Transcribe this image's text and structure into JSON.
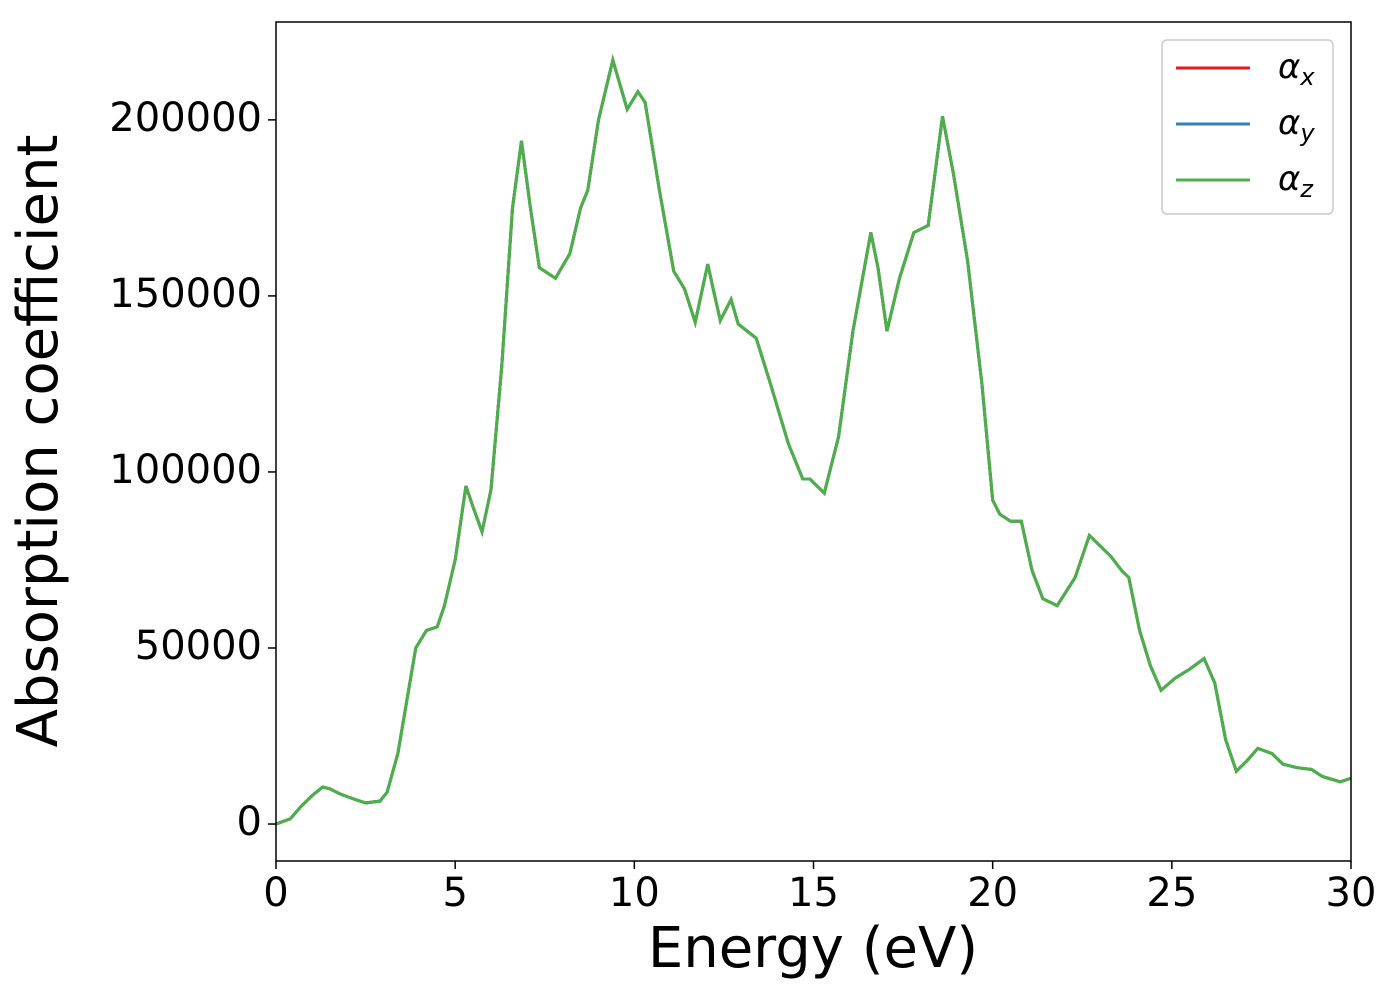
{
  "chart_data": {
    "type": "line",
    "xlabel": "Energy (eV)",
    "ylabel": "Absorption coefficient",
    "x": [
      0,
      0.4,
      0.7,
      1.0,
      1.3,
      1.5,
      1.8,
      2.2,
      2.5,
      2.9,
      3.1,
      3.4,
      3.7,
      3.9,
      4.2,
      4.5,
      4.7,
      5.0,
      5.3,
      5.5,
      5.75,
      6.0,
      6.3,
      6.6,
      6.85,
      7.1,
      7.35,
      7.8,
      8.2,
      8.5,
      8.7,
      9.0,
      9.4,
      9.6,
      9.8,
      10.1,
      10.3,
      10.7,
      11.1,
      11.4,
      11.7,
      11.9,
      12.05,
      12.2,
      12.4,
      12.7,
      12.9,
      13.4,
      13.8,
      14.3,
      14.7,
      14.9,
      15.3,
      15.7,
      16.1,
      16.6,
      16.8,
      17.05,
      17.4,
      17.8,
      18.2,
      18.6,
      18.9,
      19.3,
      19.7,
      20.0,
      20.2,
      20.5,
      20.8,
      21.1,
      21.4,
      21.8,
      22.3,
      22.7,
      23.0,
      23.3,
      23.6,
      23.8,
      24.1,
      24.4,
      24.7,
      25.1,
      25.5,
      25.9,
      26.2,
      26.5,
      26.8,
      27.1,
      27.4,
      27.8,
      28.1,
      28.5,
      28.9,
      29.2,
      29.7,
      30.0
    ],
    "series": [
      {
        "name": "αx",
        "color": "#e41a1c",
        "values": [
          0,
          1500,
          5000,
          8000,
          10500,
          10000,
          8500,
          7000,
          6000,
          6500,
          9000,
          20000,
          38000,
          50000,
          55000,
          56000,
          62000,
          75000,
          96000,
          90000,
          83000,
          95000,
          130000,
          175000,
          194000,
          175000,
          158000,
          155000,
          162000,
          175000,
          180000,
          200000,
          217000,
          210000,
          203000,
          208000,
          205000,
          180000,
          157000,
          152000,
          142500,
          152000,
          159000,
          152000,
          143000,
          149000,
          142000,
          138000,
          125000,
          108000,
          98000,
          98000,
          94000,
          110000,
          140000,
          168000,
          158000,
          140000,
          155000,
          168000,
          170000,
          201000,
          185000,
          160000,
          125000,
          92000,
          88000,
          86000,
          86000,
          72000,
          64000,
          62000,
          70000,
          82000,
          79000,
          76000,
          72000,
          70000,
          55000,
          45000,
          38000,
          41500,
          44000,
          47000,
          40000,
          24000,
          15000,
          18000,
          21500,
          20000,
          17000,
          16000,
          15500,
          13500,
          12000,
          13000
        ]
      },
      {
        "name": "αy",
        "color": "#377eb8",
        "values": [
          0,
          1500,
          5000,
          8000,
          10500,
          10000,
          8500,
          7000,
          6000,
          6500,
          9000,
          20000,
          38000,
          50000,
          55000,
          56000,
          62000,
          75000,
          96000,
          90000,
          83000,
          95000,
          130000,
          175000,
          194000,
          175000,
          158000,
          155000,
          162000,
          175000,
          180000,
          200000,
          217000,
          210000,
          203000,
          208000,
          205000,
          180000,
          157000,
          152000,
          142500,
          152000,
          159000,
          152000,
          143000,
          149000,
          142000,
          138000,
          125000,
          108000,
          98000,
          98000,
          94000,
          110000,
          140000,
          168000,
          158000,
          140000,
          155000,
          168000,
          170000,
          201000,
          185000,
          160000,
          125000,
          92000,
          88000,
          86000,
          86000,
          72000,
          64000,
          62000,
          70000,
          82000,
          79000,
          76000,
          72000,
          70000,
          55000,
          45000,
          38000,
          41500,
          44000,
          47000,
          40000,
          24000,
          15000,
          18000,
          21500,
          20000,
          17000,
          16000,
          15500,
          13500,
          12000,
          13000
        ]
      },
      {
        "name": "αz",
        "color": "#4daf4a",
        "values": [
          0,
          1500,
          5000,
          8000,
          10500,
          10000,
          8500,
          7000,
          6000,
          6500,
          9000,
          20000,
          38000,
          50000,
          55000,
          56000,
          62000,
          75000,
          96000,
          90000,
          83000,
          95000,
          130000,
          175000,
          194000,
          175000,
          158000,
          155000,
          162000,
          175000,
          180000,
          200000,
          217000,
          210000,
          203000,
          208000,
          205000,
          180000,
          157000,
          152000,
          142500,
          152000,
          159000,
          152000,
          143000,
          149000,
          142000,
          138000,
          125000,
          108000,
          98000,
          98000,
          94000,
          110000,
          140000,
          168000,
          158000,
          140000,
          155000,
          168000,
          170000,
          201000,
          185000,
          160000,
          125000,
          92000,
          88000,
          86000,
          86000,
          72000,
          64000,
          62000,
          70000,
          82000,
          79000,
          76000,
          72000,
          70000,
          55000,
          45000,
          38000,
          41500,
          44000,
          47000,
          40000,
          24000,
          15000,
          18000,
          21500,
          20000,
          17000,
          16000,
          15500,
          13500,
          12000,
          13000
        ]
      }
    ],
    "xlim": [
      0,
      30
    ],
    "xticks": [
      0,
      5,
      10,
      15,
      20,
      25,
      30
    ],
    "ylim": [
      -10500,
      227800
    ],
    "yticks": [
      0,
      50000,
      100000,
      150000,
      200000
    ],
    "grid": false,
    "legend": "upper right"
  }
}
